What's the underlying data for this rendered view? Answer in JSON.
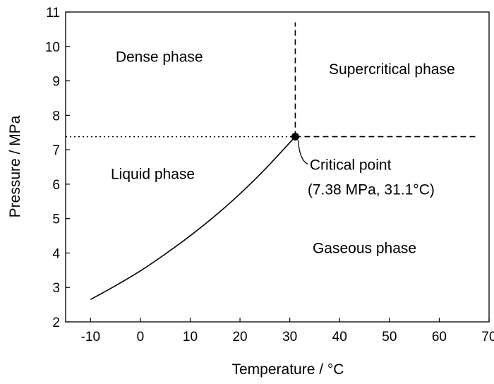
{
  "chart_data": {
    "type": "line",
    "title": "",
    "xlabel": "Temperature / ",
    "xlabel_unit": "°C",
    "ylabel": "Pressure / MPa",
    "xlim": [
      -15,
      70
    ],
    "ylim": [
      2,
      11
    ],
    "xticks": [
      -10,
      0,
      10,
      20,
      30,
      40,
      50,
      60,
      70
    ],
    "yticks": [
      2,
      3,
      4,
      5,
      6,
      7,
      8,
      9,
      10,
      11
    ],
    "series": [
      {
        "name": "Vapor pressure curve",
        "style": "solid",
        "x": [
          -10,
          -5,
          0,
          5,
          10,
          15,
          20,
          25,
          31.1
        ],
        "y": [
          2.65,
          3.05,
          3.48,
          3.97,
          4.5,
          5.08,
          5.72,
          6.43,
          7.38
        ]
      },
      {
        "name": "Critical pressure line (left)",
        "style": "dotted",
        "x": [
          -15,
          31.1
        ],
        "y": [
          7.38,
          7.38
        ]
      },
      {
        "name": "Critical pressure line (right)",
        "style": "dashed",
        "x": [
          31.1,
          67.5
        ],
        "y": [
          7.38,
          7.38
        ]
      },
      {
        "name": "Critical temperature line",
        "style": "dashed",
        "x": [
          31.1,
          31.1
        ],
        "y": [
          7.38,
          10.7
        ]
      }
    ],
    "critical_point": {
      "x": 31.1,
      "y": 7.38
    },
    "regions": [
      {
        "label": "Dense phase",
        "x": 3.8,
        "y": 9.55
      },
      {
        "label": "Supercritical phase",
        "x": 50.5,
        "y": 9.2
      },
      {
        "label": "Liquid phase",
        "x": 2.5,
        "y": 6.15
      },
      {
        "label": "Gaseous phase",
        "x": 45,
        "y": 4.0
      }
    ],
    "annotations": {
      "label": "Critical point",
      "value_prefix": "(7.38 MPa, 31.1",
      "value_unit": "°C)",
      "x": 34,
      "y": 6.42
    }
  }
}
